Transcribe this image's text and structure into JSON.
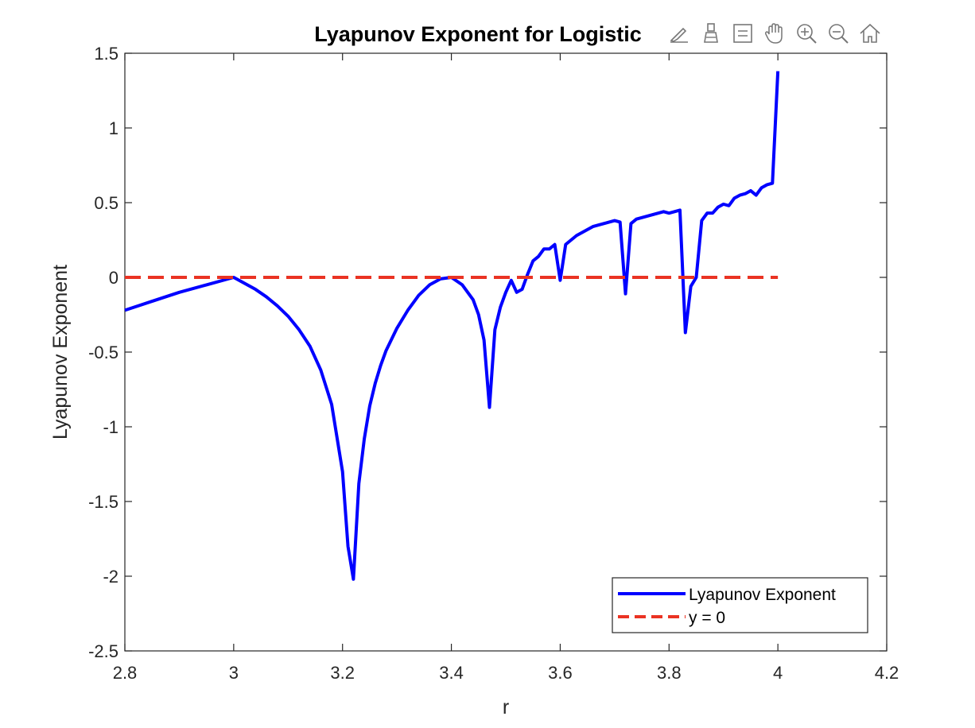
{
  "chart_data": {
    "type": "line",
    "title": "Lyapunov Exponent for Logistic",
    "xlabel": "r",
    "ylabel": "Lyapunov Exponent",
    "xlim": [
      2.8,
      4.2
    ],
    "ylim": [
      -2.5,
      1.5
    ],
    "xticks": [
      2.8,
      3,
      3.2,
      3.4,
      3.6,
      3.8,
      4,
      4.2
    ],
    "xtick_labels": [
      "2.8",
      "3",
      "3.2",
      "3.4",
      "3.6",
      "3.8",
      "4",
      "4.2"
    ],
    "yticks": [
      -2.5,
      -2,
      -1.5,
      -1,
      -0.5,
      0,
      0.5,
      1,
      1.5
    ],
    "ytick_labels": [
      "-2.5",
      "-2",
      "-1.5",
      "-1",
      "-0.5",
      "0",
      "0.5",
      "1",
      "1.5"
    ],
    "grid": false,
    "legend_position": "bottom-right",
    "series": [
      {
        "name": "Lyapunov Exponent",
        "color": "#0000ff",
        "style": "solid",
        "x": [
          2.8,
          2.85,
          2.9,
          2.95,
          3.0,
          3.02,
          3.04,
          3.06,
          3.08,
          3.1,
          3.12,
          3.14,
          3.16,
          3.18,
          3.2,
          3.21,
          3.22,
          3.23,
          3.24,
          3.25,
          3.26,
          3.27,
          3.28,
          3.3,
          3.32,
          3.34,
          3.36,
          3.38,
          3.4,
          3.42,
          3.44,
          3.45,
          3.46,
          3.47,
          3.48,
          3.49,
          3.5,
          3.51,
          3.52,
          3.53,
          3.54,
          3.55,
          3.56,
          3.57,
          3.58,
          3.59,
          3.6,
          3.61,
          3.62,
          3.63,
          3.64,
          3.65,
          3.66,
          3.67,
          3.68,
          3.69,
          3.7,
          3.71,
          3.72,
          3.73,
          3.74,
          3.75,
          3.76,
          3.77,
          3.78,
          3.79,
          3.8,
          3.81,
          3.82,
          3.83,
          3.84,
          3.85,
          3.86,
          3.87,
          3.88,
          3.89,
          3.9,
          3.91,
          3.92,
          3.93,
          3.94,
          3.95,
          3.96,
          3.97,
          3.98,
          3.99,
          4.0
        ],
        "y": [
          -0.22,
          -0.16,
          -0.1,
          -0.05,
          0.0,
          -0.04,
          -0.08,
          -0.13,
          -0.19,
          -0.26,
          -0.35,
          -0.46,
          -0.62,
          -0.85,
          -1.3,
          -1.8,
          -2.02,
          -1.38,
          -1.08,
          -0.86,
          -0.71,
          -0.59,
          -0.49,
          -0.34,
          -0.22,
          -0.12,
          -0.05,
          -0.01,
          0.0,
          -0.05,
          -0.15,
          -0.25,
          -0.42,
          -0.87,
          -0.35,
          -0.2,
          -0.1,
          -0.02,
          -0.1,
          -0.08,
          0.02,
          0.11,
          0.14,
          0.19,
          0.19,
          0.22,
          -0.02,
          0.22,
          0.25,
          0.28,
          0.3,
          0.32,
          0.34,
          0.35,
          0.36,
          0.37,
          0.38,
          0.37,
          -0.11,
          0.36,
          0.39,
          0.4,
          0.41,
          0.42,
          0.43,
          0.44,
          0.43,
          0.44,
          0.45,
          -0.37,
          -0.06,
          0.0,
          0.38,
          0.43,
          0.43,
          0.47,
          0.49,
          0.48,
          0.53,
          0.55,
          0.56,
          0.58,
          0.55,
          0.6,
          0.62,
          0.63,
          1.38
        ]
      },
      {
        "name": "y = 0",
        "color": "#ea3323",
        "style": "dashed",
        "x": [
          2.8,
          4.0
        ],
        "y": [
          0,
          0
        ]
      }
    ]
  },
  "toolbar": {
    "icons": [
      "brush-icon",
      "data-tips-icon",
      "legend-icon",
      "pan-icon",
      "zoom-in-icon",
      "zoom-out-icon",
      "home-icon"
    ]
  }
}
